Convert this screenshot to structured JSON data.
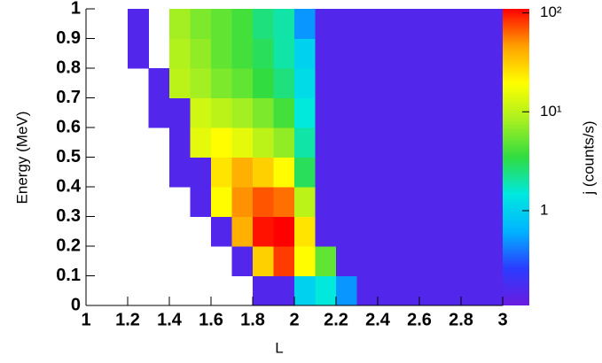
{
  "chart_data": {
    "type": "heatmap",
    "xlabel": "L",
    "ylabel": "Energy (MeV)",
    "zlabel": "j (counts/s)",
    "xlim": [
      1,
      3
    ],
    "ylim": [
      0,
      1
    ],
    "zlim": [
      0.11,
      110
    ],
    "zscale": "log",
    "xticks": [
      1,
      1.2,
      1.4,
      1.6,
      1.8,
      2,
      2.2,
      2.4,
      2.6,
      2.8,
      3
    ],
    "yticks": [
      0,
      0.1,
      0.2,
      0.3,
      0.4,
      0.5,
      0.6,
      0.7,
      0.8,
      0.9,
      1
    ],
    "zticks": [
      {
        "value": 1,
        "label": "1"
      },
      {
        "value": 10,
        "label": "10¹"
      },
      {
        "value": 100,
        "label": "10²"
      }
    ],
    "palette": [
      "#6a1be0",
      "#2a3cff",
      "#00b4ff",
      "#00e8e0",
      "#30dc40",
      "#a8f020",
      "#ffff00",
      "#ffa000",
      "#ff0000"
    ],
    "x_edges": [
      1,
      1.1,
      1.2,
      1.3,
      1.4,
      1.5,
      1.6,
      1.7,
      1.8,
      1.9,
      2,
      2.1,
      2.2,
      2.3,
      2.4,
      2.5,
      2.6,
      2.7,
      2.8,
      2.9,
      3
    ],
    "y_edges": [
      0,
      0.1,
      0.2,
      0.3,
      0.4,
      0.5,
      0.6,
      0.7,
      0.8,
      0.9,
      1
    ],
    "values": [
      [
        null,
        null,
        null,
        null,
        null,
        null,
        null,
        null,
        0.15,
        0.15,
        1,
        1.5,
        0.5,
        0.15,
        0.15,
        0.15,
        0.15,
        0.15,
        0.15,
        0.15
      ],
      [
        null,
        null,
        null,
        null,
        null,
        null,
        null,
        0.15,
        30,
        80,
        20,
        5,
        0.15,
        0.15,
        0.15,
        0.15,
        0.15,
        0.15,
        0.15,
        0.15
      ],
      [
        null,
        null,
        null,
        null,
        null,
        null,
        0.15,
        40,
        100,
        120,
        25,
        0.15,
        0.15,
        0.15,
        0.15,
        0.15,
        0.15,
        0.15,
        0.15,
        0.15
      ],
      [
        null,
        null,
        null,
        null,
        null,
        0.15,
        20,
        50,
        70,
        60,
        10,
        0.15,
        0.15,
        0.15,
        0.15,
        0.15,
        0.15,
        0.15,
        0.15,
        0.15
      ],
      [
        null,
        null,
        null,
        null,
        0.15,
        0.15,
        25,
        40,
        30,
        20,
        3,
        0.15,
        0.15,
        0.15,
        0.15,
        0.15,
        0.15,
        0.15,
        0.15,
        0.15
      ],
      [
        null,
        null,
        null,
        null,
        0.15,
        15,
        20,
        15,
        10,
        7,
        2,
        0.15,
        0.15,
        0.15,
        0.15,
        0.15,
        0.15,
        0.15,
        0.15,
        0.15
      ],
      [
        null,
        null,
        null,
        0.15,
        0.15,
        12,
        10,
        8,
        6,
        4,
        1.5,
        0.15,
        0.15,
        0.15,
        0.15,
        0.15,
        0.15,
        0.15,
        0.15,
        0.15
      ],
      [
        null,
        null,
        null,
        0.15,
        10,
        8,
        6,
        5,
        3.5,
        2.5,
        1.2,
        0.15,
        0.15,
        0.15,
        0.15,
        0.15,
        0.15,
        0.15,
        0.15,
        0.15
      ],
      [
        null,
        null,
        0.15,
        null,
        9,
        7,
        5,
        4,
        3,
        2,
        1,
        0.15,
        0.15,
        0.15,
        0.15,
        0.15,
        0.15,
        0.15,
        0.15,
        0.15
      ],
      [
        null,
        null,
        0.15,
        null,
        8,
        6,
        5,
        4,
        2.5,
        2,
        0.5,
        0.15,
        0.15,
        0.15,
        0.15,
        0.15,
        0.15,
        0.15,
        0.15,
        0.15
      ]
    ]
  }
}
